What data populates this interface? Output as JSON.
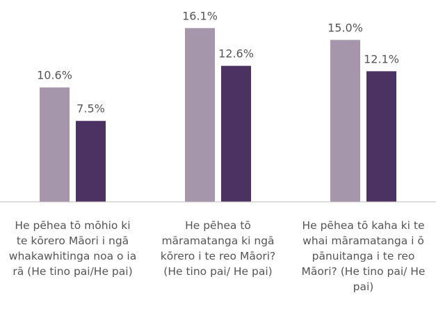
{
  "chart_data": {
    "type": "bar",
    "categories": [
      "He pēhea tō mōhio ki te kōrero Māori i ngā whakawhitinga noa o ia rā (He tino pai/He pai)",
      "He pēhea tō māramatanga ki ngā kōrero i te reo Māori? (He tino pai/ He pai)",
      "He pēhea tō kaha ki te whai māramatanga i ō pānuitanga i te reo Māori? (He tino pai/ He pai)"
    ],
    "series": [
      {
        "color": "#a696ab",
        "values": [
          10.6,
          16.1,
          15.0
        ],
        "value_labels": [
          "10.6%",
          "16.1%",
          "15.0%"
        ]
      },
      {
        "color": "#4b3262",
        "values": [
          7.5,
          12.6,
          12.1
        ],
        "value_labels": [
          "7.5%",
          "12.6%",
          "12.1%"
        ]
      }
    ],
    "ylim": [
      0,
      18.7
    ]
  }
}
